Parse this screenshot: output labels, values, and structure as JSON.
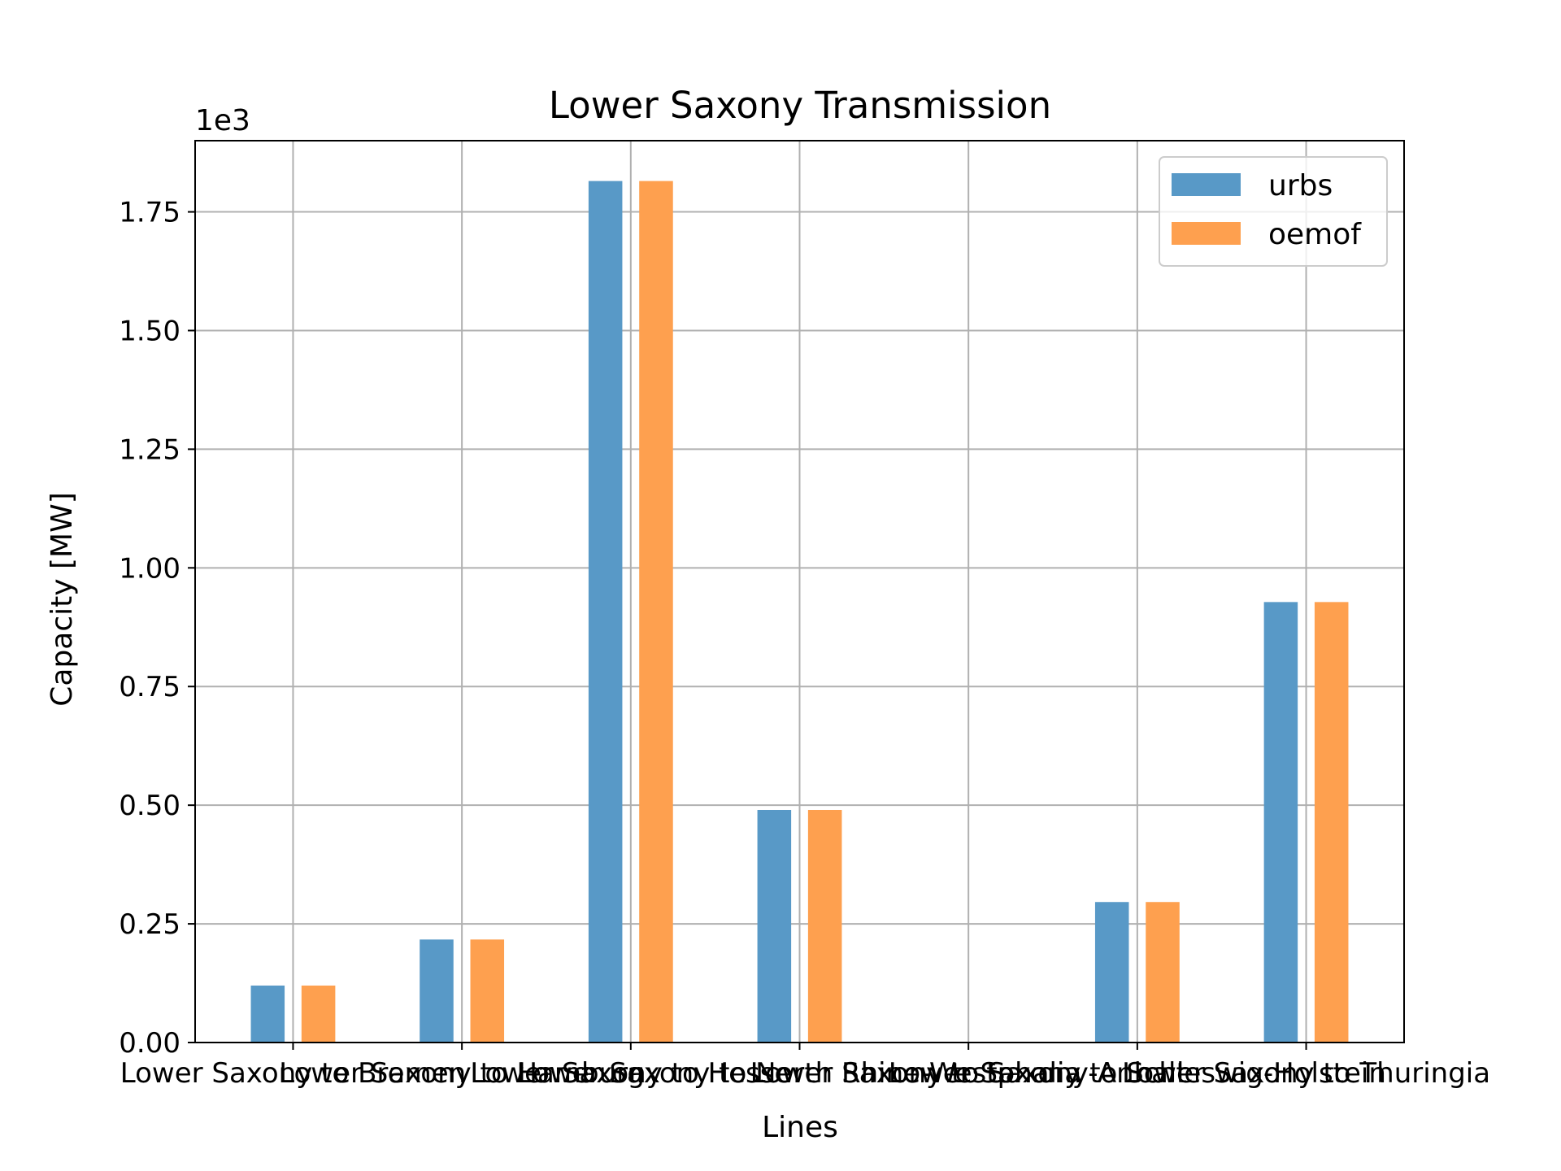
{
  "chart_data": {
    "type": "bar",
    "title": "Lower Saxony Transmission",
    "xlabel": "Lines",
    "ylabel": "Capacity [MW]",
    "y_offset_text": "1e3",
    "ylim": [
      0,
      1.9
    ],
    "yticks": [
      "0.00",
      "0.25",
      "0.50",
      "0.75",
      "1.00",
      "1.25",
      "1.50",
      "1.75"
    ],
    "grid": true,
    "legend_position": "upper-right",
    "categories": [
      "Lower Saxony to Bremen",
      "Lower Saxony to Hamburg",
      "Lower Saxony to Hesse",
      "Lower Saxony to North Rhine-Westphalia",
      "Lower Saxony to Saxony-Anhalt",
      "Lower Saxony to Schleswig-Holstein",
      "Lower Saxony to Thuringia"
    ],
    "series": [
      {
        "name": "urbs",
        "color": "#5899c7",
        "values": [
          0.12,
          0.217,
          1.815,
          0.49,
          0.0,
          0.296,
          0.928
        ]
      },
      {
        "name": "oemof",
        "color": "#fea04f",
        "values": [
          0.12,
          0.217,
          1.815,
          0.49,
          0.0,
          0.296,
          0.928
        ]
      }
    ]
  }
}
